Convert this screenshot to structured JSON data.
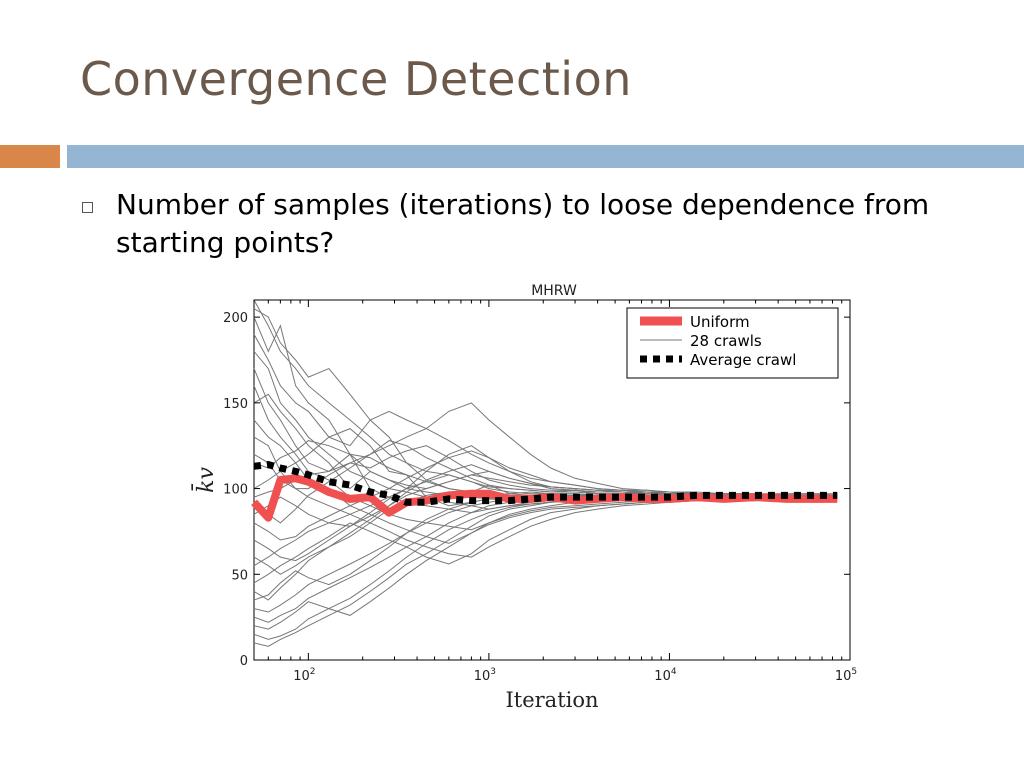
{
  "slide": {
    "title": "Convergence Detection",
    "bullet": "Number of samples (iterations) to loose dependence from starting points?",
    "colors": {
      "title": "#6b5a4c",
      "accent_bar": "#d9864b",
      "main_bar": "#94b6d2"
    }
  },
  "chart_data": {
    "type": "line",
    "title": "MHRW",
    "xlabel": "Iteration",
    "ylabel": "k̄v",
    "x_scale": "log",
    "xlim": [
      50,
      100000
    ],
    "ylim": [
      0,
      210
    ],
    "x_ticks": [
      {
        "value": 100,
        "label": "10",
        "sup": "2"
      },
      {
        "value": 1000,
        "label": "10",
        "sup": "3"
      },
      {
        "value": 10000,
        "label": "10",
        "sup": "4"
      },
      {
        "value": 100000,
        "label": "10",
        "sup": "5"
      }
    ],
    "y_ticks": [
      0,
      50,
      100,
      150,
      200
    ],
    "legend": {
      "position": "top-right",
      "entries": [
        "Uniform",
        "28 crawls",
        "Average crawl"
      ]
    },
    "x": [
      50,
      60,
      70,
      85,
      100,
      130,
      170,
      220,
      280,
      350,
      450,
      600,
      800,
      1000,
      1300,
      1700,
      2200,
      3000,
      4000,
      5500,
      7500,
      10000,
      14000,
      20000,
      30000,
      45000,
      65000,
      85000
    ],
    "series": [
      {
        "name": "Uniform",
        "color": "#f05050",
        "style": "thick",
        "values": [
          92,
          83,
          105,
          106,
          104,
          98,
          94,
          95,
          86,
          92,
          93,
          96,
          97,
          97,
          94,
          94,
          95,
          93,
          94,
          95,
          94,
          94,
          95,
          94,
          95,
          94,
          94,
          94
        ]
      },
      {
        "name": "28 crawls",
        "color": "#777777",
        "style": "thin",
        "values_list": [
          [
            210,
            195,
            180,
            170,
            160,
            150,
            140,
            130,
            120,
            115,
            110,
            108,
            104,
            101,
            100,
            99,
            98,
            99,
            97,
            97,
            98,
            97,
            97,
            97,
            96,
            97,
            97,
            97
          ],
          [
            205,
            200,
            185,
            175,
            165,
            170,
            155,
            140,
            130,
            115,
            105,
            100,
            98,
            102,
            97,
            96,
            96,
            95,
            96,
            96,
            95,
            96,
            96,
            95,
            96,
            96,
            95,
            96
          ],
          [
            200,
            180,
            195,
            160,
            150,
            140,
            120,
            110,
            105,
            100,
            98,
            96,
            95,
            94,
            96,
            95,
            95,
            96,
            95,
            95,
            94,
            95,
            95,
            95,
            95,
            94,
            95,
            95
          ],
          [
            190,
            175,
            160,
            150,
            145,
            130,
            135,
            125,
            110,
            108,
            95,
            90,
            92,
            94,
            93,
            94,
            95,
            94,
            94,
            95,
            95,
            94,
            95,
            95,
            94,
            95,
            95,
            95
          ],
          [
            180,
            170,
            150,
            140,
            130,
            120,
            110,
            105,
            100,
            98,
            95,
            92,
            90,
            88,
            90,
            92,
            93,
            94,
            94,
            93,
            94,
            95,
            94,
            94,
            95,
            95,
            94,
            95
          ],
          [
            170,
            150,
            140,
            125,
            115,
            110,
            120,
            100,
            95,
            92,
            90,
            88,
            86,
            88,
            90,
            91,
            92,
            93,
            93,
            94,
            94,
            94,
            94,
            95,
            94,
            95,
            95,
            95
          ],
          [
            160,
            140,
            130,
            120,
            110,
            105,
            95,
            90,
            85,
            82,
            80,
            78,
            76,
            80,
            84,
            87,
            89,
            90,
            91,
            92,
            93,
            93,
            94,
            94,
            94,
            94,
            95,
            95
          ],
          [
            150,
            155,
            145,
            135,
            125,
            115,
            100,
            110,
            105,
            102,
            100,
            104,
            108,
            106,
            104,
            102,
            101,
            100,
            99,
            99,
            98,
            98,
            97,
            97,
            97,
            96,
            96,
            96
          ],
          [
            140,
            130,
            125,
            115,
            105,
            100,
            90,
            85,
            80,
            76,
            72,
            68,
            74,
            79,
            83,
            86,
            88,
            89,
            90,
            91,
            92,
            92,
            93,
            93,
            93,
            94,
            94,
            94
          ],
          [
            130,
            125,
            110,
            100,
            95,
            90,
            85,
            80,
            75,
            70,
            66,
            62,
            60,
            66,
            72,
            78,
            82,
            86,
            88,
            90,
            91,
            92,
            93,
            93,
            94,
            94,
            94,
            94
          ],
          [
            120,
            115,
            105,
            100,
            100,
            108,
            115,
            120,
            125,
            130,
            135,
            145,
            150,
            140,
            130,
            120,
            112,
            106,
            103,
            100,
            99,
            98,
            97,
            97,
            96,
            96,
            96,
            96
          ],
          [
            115,
            112,
            118,
            122,
            128,
            125,
            120,
            118,
            112,
            108,
            104,
            100,
            98,
            96,
            97,
            98,
            97,
            97,
            96,
            96,
            96,
            95,
            96,
            96,
            96,
            96,
            96,
            96
          ],
          [
            100,
            105,
            110,
            115,
            120,
            130,
            125,
            140,
            145,
            140,
            135,
            128,
            120,
            115,
            110,
            106,
            104,
            102,
            100,
            99,
            99,
            98,
            98,
            97,
            97,
            97,
            97,
            96
          ],
          [
            95,
            98,
            100,
            105,
            108,
            110,
            115,
            112,
            118,
            122,
            125,
            118,
            110,
            105,
            102,
            100,
            99,
            99,
            98,
            98,
            97,
            97,
            97,
            96,
            96,
            96,
            96,
            96
          ],
          [
            90,
            85,
            80,
            88,
            96,
            104,
            112,
            120,
            128,
            125,
            118,
            112,
            106,
            102,
            100,
            99,
            98,
            98,
            97,
            97,
            97,
            96,
            96,
            96,
            96,
            96,
            96,
            96
          ],
          [
            85,
            90,
            95,
            90,
            85,
            80,
            78,
            84,
            90,
            96,
            100,
            104,
            108,
            110,
            106,
            103,
            100,
            99,
            98,
            98,
            97,
            97,
            97,
            96,
            96,
            96,
            96,
            96
          ],
          [
            80,
            75,
            70,
            72,
            78,
            84,
            90,
            95,
            100,
            106,
            112,
            118,
            122,
            118,
            112,
            108,
            104,
            102,
            100,
            99,
            98,
            98,
            97,
            97,
            97,
            96,
            96,
            96
          ],
          [
            70,
            65,
            60,
            58,
            62,
            70,
            78,
            86,
            94,
            100,
            104,
            108,
            104,
            100,
            98,
            97,
            97,
            97,
            96,
            96,
            96,
            96,
            96,
            95,
            95,
            95,
            95,
            95
          ],
          [
            60,
            55,
            50,
            55,
            60,
            66,
            72,
            80,
            88,
            92,
            96,
            98,
            97,
            96,
            95,
            95,
            95,
            95,
            95,
            95,
            95,
            95,
            95,
            95,
            95,
            95,
            95,
            95
          ],
          [
            55,
            60,
            65,
            70,
            75,
            80,
            85,
            90,
            95,
            100,
            110,
            120,
            125,
            118,
            110,
            104,
            101,
            100,
            99,
            98,
            98,
            97,
            97,
            97,
            96,
            96,
            96,
            96
          ],
          [
            45,
            50,
            55,
            60,
            65,
            72,
            80,
            75,
            70,
            66,
            60,
            56,
            62,
            70,
            76,
            82,
            86,
            88,
            90,
            91,
            92,
            92,
            93,
            93,
            93,
            94,
            94,
            94
          ],
          [
            40,
            35,
            42,
            50,
            58,
            66,
            74,
            82,
            90,
            98,
            105,
            110,
            114,
            110,
            106,
            103,
            101,
            100,
            99,
            98,
            98,
            97,
            97,
            97,
            96,
            96,
            96,
            96
          ],
          [
            35,
            38,
            45,
            52,
            48,
            44,
            50,
            58,
            66,
            74,
            82,
            88,
            92,
            94,
            95,
            96,
            96,
            96,
            96,
            96,
            96,
            95,
            95,
            95,
            95,
            95,
            95,
            95
          ],
          [
            30,
            28,
            32,
            38,
            44,
            50,
            56,
            62,
            68,
            74,
            80,
            86,
            90,
            92,
            94,
            95,
            95,
            96,
            96,
            96,
            95,
            95,
            95,
            95,
            95,
            95,
            95,
            95
          ],
          [
            25,
            22,
            26,
            30,
            36,
            42,
            48,
            54,
            60,
            66,
            72,
            80,
            86,
            90,
            92,
            94,
            95,
            95,
            95,
            95,
            95,
            95,
            95,
            95,
            95,
            95,
            95,
            95
          ],
          [
            20,
            18,
            22,
            28,
            34,
            30,
            26,
            34,
            42,
            50,
            58,
            66,
            74,
            80,
            85,
            88,
            90,
            92,
            93,
            94,
            94,
            94,
            95,
            95,
            95,
            95,
            95,
            95
          ],
          [
            15,
            12,
            14,
            18,
            24,
            30,
            36,
            44,
            52,
            60,
            68,
            76,
            82,
            86,
            89,
            91,
            92,
            93,
            94,
            94,
            94,
            95,
            95,
            95,
            95,
            95,
            95,
            95
          ],
          [
            10,
            8,
            12,
            16,
            20,
            26,
            32,
            40,
            48,
            56,
            62,
            70,
            78,
            84,
            88,
            90,
            92,
            93,
            94,
            94,
            95,
            95,
            95,
            95,
            95,
            95,
            95,
            95
          ]
        ]
      },
      {
        "name": "Average crawl",
        "color": "#000000",
        "style": "dotted",
        "values": [
          113,
          114,
          112,
          110,
          108,
          104,
          102,
          98,
          96,
          92,
          92,
          94,
          93,
          93,
          93,
          94,
          95,
          95,
          95,
          95,
          95,
          95,
          96,
          96,
          96,
          96,
          96,
          96
        ]
      }
    ]
  }
}
